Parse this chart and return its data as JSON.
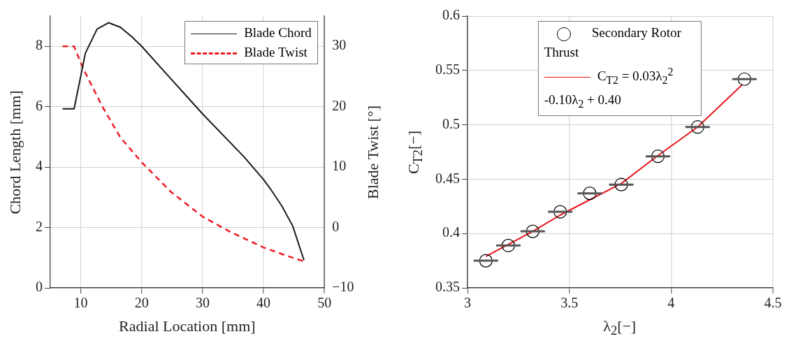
{
  "chart_data": [
    {
      "type": "line",
      "xlabel": "Radial Location [mm]",
      "ylabel": "Chord Length [mm]",
      "y2label": "Blade Twist [°]",
      "xlim": [
        5,
        50
      ],
      "xticks": [
        10,
        20,
        30,
        40,
        50
      ],
      "ylim": [
        0,
        9
      ],
      "yticks": [
        0,
        2,
        4,
        6,
        8
      ],
      "y2lim": [
        -10,
        35
      ],
      "y2ticks": [
        {
          "value": -10,
          "label": "−10"
        },
        0,
        10,
        20,
        30
      ],
      "grid": true,
      "legend": "top right",
      "series": [
        {
          "name": "Blade Chord",
          "color": "#1a1a1a",
          "line_style": "solid",
          "x": [
            7.0,
            8.9,
            10.75,
            12.67,
            14.55,
            16.5,
            18.4,
            20.0,
            24.8,
            30.0,
            36.8,
            40.0,
            41.1,
            43.0,
            44.8,
            46.65
          ],
          "values": [
            5.93,
            5.93,
            7.77,
            8.57,
            8.78,
            8.63,
            8.31,
            8.0,
            6.92,
            5.76,
            4.34,
            3.59,
            3.29,
            2.72,
            2.05,
            0.92
          ]
        },
        {
          "name": "Blade Twist",
          "color": "#ee1c25",
          "line_style": "dashed",
          "axis": "y2",
          "x": [
            7.0,
            8.9,
            10.3,
            13.5,
            16.5,
            20.0,
            24.8,
            30.0,
            34.5,
            40.0,
            43.6,
            46.65
          ],
          "values": [
            30.0,
            30.0,
            26.5,
            20.1,
            14.9,
            10.8,
            5.9,
            1.8,
            -0.7,
            -3.3,
            -4.6,
            -5.6
          ]
        }
      ]
    },
    {
      "type": "scatter",
      "xlabel": "λ$_{2}$[−]",
      "ylabel": "C$_{T2}$[−]",
      "xlim": [
        3,
        4.5
      ],
      "xticks": [
        3,
        3.5,
        4,
        4.5
      ],
      "ylim": [
        0.35,
        0.6
      ],
      "yticks": [
        0.35,
        0.4,
        0.45,
        0.5,
        0.55,
        0.6
      ],
      "grid": true,
      "legend": "top",
      "series": [
        {
          "name": "Secondary Rotor Thrust",
          "color": "#000000",
          "marker": "circle",
          "x": [
            3.09,
            3.2,
            3.32,
            3.455,
            3.6,
            3.755,
            3.935,
            4.13,
            4.36
          ],
          "values": [
            0.375,
            0.389,
            0.402,
            0.42,
            0.437,
            0.445,
            0.471,
            0.498,
            0.542
          ],
          "xerrors": [
            0.06,
            0.06,
            0.06,
            0.06,
            0.06,
            0.06,
            0.06,
            0.06,
            0.06
          ]
        },
        {
          "name": "C$_{T2}$ = 0.03λ$_{2}$$^{2}$ -0.10λ$_{2}$ + 0.40",
          "type": "line",
          "color": "#e8141c",
          "marker": "none",
          "line_style": "solid",
          "x": [
            3.09,
            3.32,
            3.455,
            3.755,
            3.93,
            4.13,
            4.35
          ],
          "values": [
            0.379,
            0.402,
            0.417,
            0.446,
            0.471,
            0.498,
            0.537
          ]
        }
      ]
    }
  ]
}
